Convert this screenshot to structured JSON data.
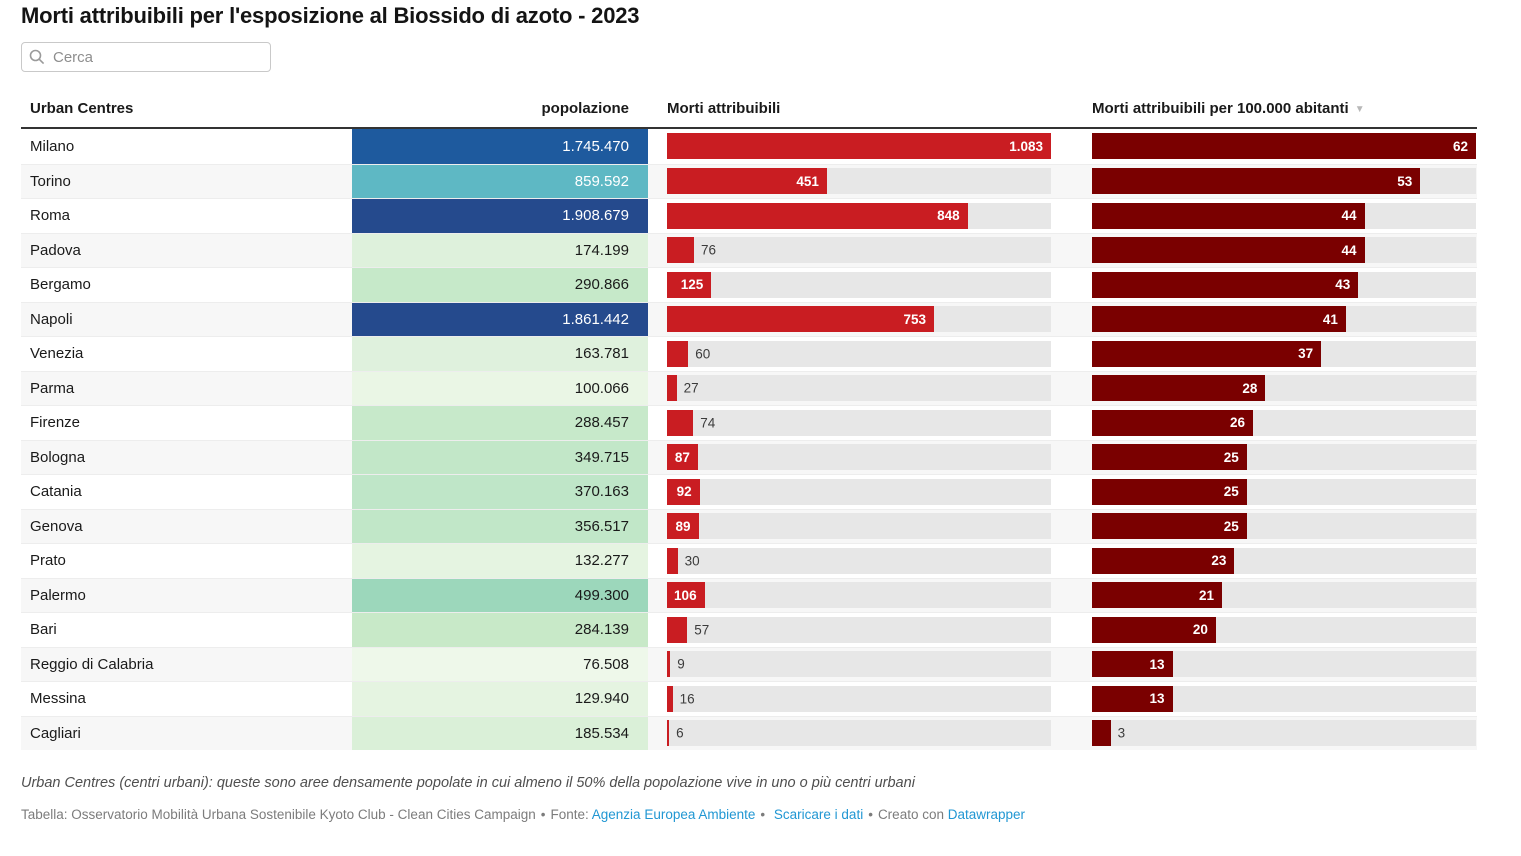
{
  "title": "Morti attribuibili per l'esposizione al Biossido di azoto - 2023",
  "search": {
    "placeholder": "Cerca"
  },
  "colors": {
    "deaths_bar": "#c91d22",
    "rate_bar": "#7a0000",
    "track": "#e7e7e7",
    "stripe": "#f7f7f7",
    "link_blue": "#2197d3"
  },
  "table": {
    "columns": {
      "city": "Urban Centres",
      "population": "popolazione",
      "deaths": "Morti attribuibili",
      "rate": "Morti attribuibili per 100.000 abitanti"
    },
    "sort_arrow": "▼",
    "deaths_max": 1083,
    "rate_max": 62,
    "rows": [
      {
        "city": "Milano",
        "population": "1.745.470",
        "pop_color": "#1e5a9e",
        "pop_text": "light",
        "deaths": 1083,
        "deaths_label": "1.083",
        "deaths_inside": true,
        "rate": 62,
        "rate_label": "62",
        "rate_inside": true
      },
      {
        "city": "Torino",
        "population": "859.592",
        "pop_color": "#5eb8c4",
        "pop_text": "light",
        "deaths": 451,
        "deaths_label": "451",
        "deaths_inside": true,
        "rate": 53,
        "rate_label": "53",
        "rate_inside": true
      },
      {
        "city": "Roma",
        "population": "1.908.679",
        "pop_color": "#254a8d",
        "pop_text": "light",
        "deaths": 848,
        "deaths_label": "848",
        "deaths_inside": true,
        "rate": 44,
        "rate_label": "44",
        "rate_inside": true
      },
      {
        "city": "Padova",
        "population": "174.199",
        "pop_color": "#def1dc",
        "pop_text": "dark",
        "deaths": 76,
        "deaths_label": "76",
        "deaths_inside": false,
        "rate": 44,
        "rate_label": "44",
        "rate_inside": true
      },
      {
        "city": "Bergamo",
        "population": "290.866",
        "pop_color": "#c6e9c9",
        "pop_text": "dark",
        "deaths": 125,
        "deaths_label": "125",
        "deaths_inside": true,
        "rate": 43,
        "rate_label": "43",
        "rate_inside": true
      },
      {
        "city": "Napoli",
        "population": "1.861.442",
        "pop_color": "#254a8d",
        "pop_text": "light",
        "deaths": 753,
        "deaths_label": "753",
        "deaths_inside": true,
        "rate": 41,
        "rate_label": "41",
        "rate_inside": true
      },
      {
        "city": "Venezia",
        "population": "163.781",
        "pop_color": "#dff1dd",
        "pop_text": "dark",
        "deaths": 60,
        "deaths_label": "60",
        "deaths_inside": false,
        "rate": 37,
        "rate_label": "37",
        "rate_inside": true
      },
      {
        "city": "Parma",
        "population": "100.066",
        "pop_color": "#eaf6e5",
        "pop_text": "dark",
        "deaths": 27,
        "deaths_label": "27",
        "deaths_inside": false,
        "rate": 28,
        "rate_label": "28",
        "rate_inside": true
      },
      {
        "city": "Firenze",
        "population": "288.457",
        "pop_color": "#c7e9ca",
        "pop_text": "dark",
        "deaths": 74,
        "deaths_label": "74",
        "deaths_inside": false,
        "rate": 26,
        "rate_label": "26",
        "rate_inside": true
      },
      {
        "city": "Bologna",
        "population": "349.715",
        "pop_color": "#c2e7c8",
        "pop_text": "dark",
        "deaths": 87,
        "deaths_label": "87",
        "deaths_inside": true,
        "rate": 25,
        "rate_label": "25",
        "rate_inside": true
      },
      {
        "city": "Catania",
        "population": "370.163",
        "pop_color": "#bfe6c8",
        "pop_text": "dark",
        "deaths": 92,
        "deaths_label": "92",
        "deaths_inside": true,
        "rate": 25,
        "rate_label": "25",
        "rate_inside": true
      },
      {
        "city": "Genova",
        "population": "356.517",
        "pop_color": "#c1e7c8",
        "pop_text": "dark",
        "deaths": 89,
        "deaths_label": "89",
        "deaths_inside": true,
        "rate": 25,
        "rate_label": "25",
        "rate_inside": true
      },
      {
        "city": "Prato",
        "population": "132.277",
        "pop_color": "#e5f4e1",
        "pop_text": "dark",
        "deaths": 30,
        "deaths_label": "30",
        "deaths_inside": false,
        "rate": 23,
        "rate_label": "23",
        "rate_inside": true
      },
      {
        "city": "Palermo",
        "population": "499.300",
        "pop_color": "#9cd7bb",
        "pop_text": "dark",
        "deaths": 106,
        "deaths_label": "106",
        "deaths_inside": true,
        "rate": 21,
        "rate_label": "21",
        "rate_inside": true
      },
      {
        "city": "Bari",
        "population": "284.139",
        "pop_color": "#c8e9c8",
        "pop_text": "dark",
        "deaths": 57,
        "deaths_label": "57",
        "deaths_inside": false,
        "rate": 20,
        "rate_label": "20",
        "rate_inside": true
      },
      {
        "city": "Reggio di Calabria",
        "population": "76.508",
        "pop_color": "#eef8ea",
        "pop_text": "dark",
        "deaths": 9,
        "deaths_label": "9",
        "deaths_inside": false,
        "rate": 13,
        "rate_label": "13",
        "rate_inside": true
      },
      {
        "city": "Messina",
        "population": "129.940",
        "pop_color": "#e5f4e1",
        "pop_text": "dark",
        "deaths": 16,
        "deaths_label": "16",
        "deaths_inside": false,
        "rate": 13,
        "rate_label": "13",
        "rate_inside": true
      },
      {
        "city": "Cagliari",
        "population": "185.534",
        "pop_color": "#daf0d8",
        "pop_text": "dark",
        "deaths": 6,
        "deaths_label": "6",
        "deaths_inside": false,
        "rate": 3,
        "rate_label": "3",
        "rate_inside": false
      }
    ]
  },
  "footer": {
    "note": "Urban Centres (centri urbani): queste sono aree densamente popolate in cui almeno il 50% della popolazione vive in uno o più centri urbani",
    "tabella_label": "Tabella: Osservatorio Mobilità Urbana Sostenibile Kyoto Club - Clean Cities Campaign",
    "separator": "•",
    "fonte_label": "Fonte:",
    "fonte_link": "Agenzia Europea Ambiente",
    "scaricare_link": "Scaricare i dati",
    "creato_label": "Creato con",
    "datawrapper_link": "Datawrapper"
  },
  "chart_data": {
    "type": "table",
    "title": "Morti attribuibili per l'esposizione al Biossido di azoto - 2023",
    "columns": [
      "Urban Centres",
      "popolazione",
      "Morti attribuibili",
      "Morti attribuibili per 100.000 abitanti"
    ],
    "sorted_by": "Morti attribuibili per 100.000 abitanti (descending)",
    "bar_scale_max": {
      "morti_attribuibili": 1083,
      "morti_per_100000": 62
    },
    "rows": [
      [
        "Milano",
        1745470,
        1083,
        62
      ],
      [
        "Torino",
        859592,
        451,
        53
      ],
      [
        "Roma",
        1908679,
        848,
        44
      ],
      [
        "Padova",
        174199,
        76,
        44
      ],
      [
        "Bergamo",
        290866,
        125,
        43
      ],
      [
        "Napoli",
        1861442,
        753,
        41
      ],
      [
        "Venezia",
        163781,
        60,
        37
      ],
      [
        "Parma",
        100066,
        27,
        28
      ],
      [
        "Firenze",
        288457,
        74,
        26
      ],
      [
        "Bologna",
        349715,
        87,
        25
      ],
      [
        "Catania",
        370163,
        92,
        25
      ],
      [
        "Genova",
        356517,
        89,
        25
      ],
      [
        "Prato",
        132277,
        30,
        23
      ],
      [
        "Palermo",
        499300,
        106,
        21
      ],
      [
        "Bari",
        284139,
        57,
        20
      ],
      [
        "Reggio di Calabria",
        76508,
        9,
        13
      ],
      [
        "Messina",
        129940,
        16,
        13
      ],
      [
        "Cagliari",
        185534,
        6,
        3
      ]
    ]
  }
}
